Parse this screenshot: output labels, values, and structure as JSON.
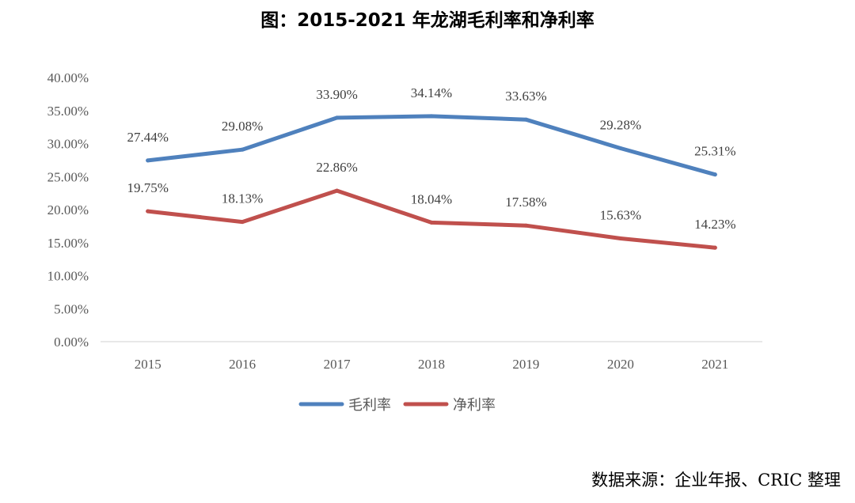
{
  "title": "图：2015-2021 年龙湖毛利率和净利率",
  "source": "数据来源：企业年报、CRIC 整理",
  "chart_data": {
    "type": "line",
    "title": "图：2015-2021 年龙湖毛利率和净利率",
    "categories": [
      "2015",
      "2016",
      "2017",
      "2018",
      "2019",
      "2020",
      "2021"
    ],
    "series": [
      {
        "name": "毛利率",
        "color": "#4F81BD",
        "values": [
          27.44,
          29.08,
          33.9,
          34.14,
          33.63,
          29.28,
          25.31
        ],
        "labels": [
          "27.44%",
          "29.08%",
          "33.90%",
          "34.14%",
          "33.63%",
          "29.28%",
          "25.31%"
        ]
      },
      {
        "name": "净利率",
        "color": "#C0504D",
        "values": [
          19.75,
          18.13,
          22.86,
          18.04,
          17.58,
          15.63,
          14.23
        ],
        "labels": [
          "19.75%",
          "18.13%",
          "22.86%",
          "18.04%",
          "17.58%",
          "15.63%",
          "14.23%"
        ]
      }
    ],
    "ylim": [
      0,
      40
    ],
    "yticks": [
      "0.00%",
      "5.00%",
      "10.00%",
      "15.00%",
      "20.00%",
      "25.00%",
      "30.00%",
      "35.00%",
      "40.00%"
    ],
    "grid": false,
    "legend": "bottom"
  }
}
